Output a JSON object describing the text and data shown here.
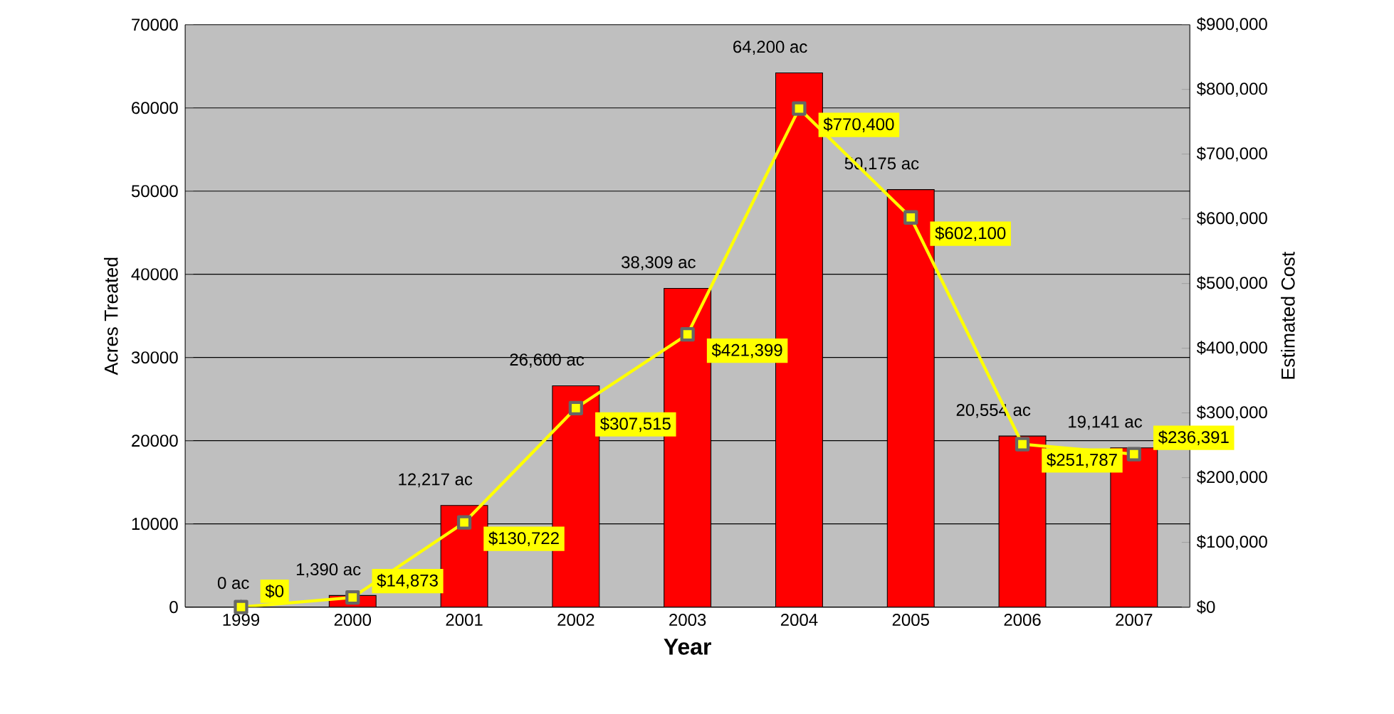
{
  "chart_data": {
    "type": "bar",
    "xlabel": "Year",
    "ylabel": "Acres Treated",
    "y2label": "Estimated Cost",
    "categories": [
      "1999",
      "2000",
      "2001",
      "2002",
      "2003",
      "2004",
      "2005",
      "2006",
      "2007"
    ],
    "series": [
      {
        "color": "#ff0000",
        "values": [
          0,
          1390,
          12217,
          26600,
          38309,
          64200,
          50175,
          20554,
          19141
        ],
        "value_labels": [
          "0 ac",
          "1,390 ac",
          "12,217 ac",
          "26,600 ac",
          "38,309 ac",
          "64,200 ac",
          "50,175 ac",
          "20,554 ac",
          "19,141 ac"
        ]
      },
      {
        "type": "line",
        "axis": "y2",
        "color": "#ffff00",
        "marker": "square",
        "values": [
          0,
          14873,
          130722,
          307515,
          421399,
          770400,
          602100,
          251787,
          236391
        ],
        "value_labels": [
          "$0",
          "$14,873",
          "$130,722",
          "$307,515",
          "$421,399",
          "$770,400",
          "$602,100",
          "$251,787",
          "$236,391"
        ]
      }
    ],
    "ylim": [
      0,
      70000
    ],
    "yticks": [
      0,
      10000,
      20000,
      30000,
      40000,
      50000,
      60000,
      70000
    ],
    "y2lim": [
      0,
      900000
    ],
    "y2ticks": [
      {
        "value": 0,
        "label": "$0"
      },
      {
        "value": 100000,
        "label": "$100,000"
      },
      {
        "value": 200000,
        "label": "$200,000"
      },
      {
        "value": 300000,
        "label": "$300,000"
      },
      {
        "value": 400000,
        "label": "$400,000"
      },
      {
        "value": 500000,
        "label": "$500,000"
      },
      {
        "value": 600000,
        "label": "$600,000"
      },
      {
        "value": 700000,
        "label": "$700,000"
      },
      {
        "value": 800000,
        "label": "$800,000"
      },
      {
        "value": 900000,
        "label": "$900,000"
      }
    ],
    "grid": "y"
  }
}
